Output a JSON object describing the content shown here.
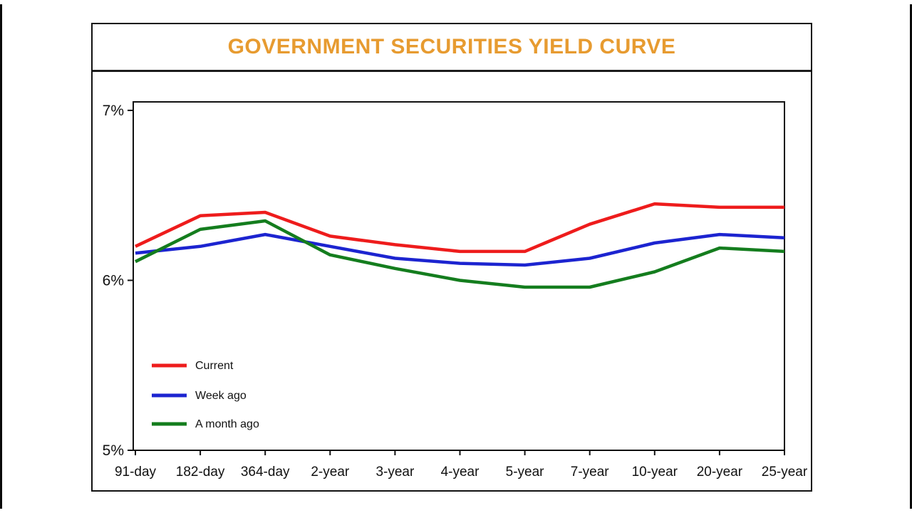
{
  "card": {
    "title": "GOVERNMENT SECURITIES YIELD CURVE",
    "title_color": "#E79B30",
    "border_color": "#111111"
  },
  "chart_data": {
    "type": "line",
    "title": "GOVERNMENT SECURITIES YIELD CURVE",
    "categories": [
      "91-day",
      "182-day",
      "364-day",
      "2-year",
      "3-year",
      "4-year",
      "5-year",
      "7-year",
      "10-year",
      "20-year",
      "25-year"
    ],
    "series": [
      {
        "name": "Current",
        "color": "#EE1C1C",
        "values": [
          6.2,
          6.38,
          6.4,
          6.26,
          6.21,
          6.17,
          6.17,
          6.33,
          6.45,
          6.43,
          6.43
        ]
      },
      {
        "name": "Week ago",
        "color": "#1C24D0",
        "values": [
          6.16,
          6.2,
          6.27,
          6.2,
          6.13,
          6.1,
          6.09,
          6.13,
          6.22,
          6.27,
          6.25
        ]
      },
      {
        "name": "A month ago",
        "color": "#147D1E",
        "values": [
          6.11,
          6.3,
          6.35,
          6.15,
          6.07,
          6.0,
          5.96,
          5.96,
          6.05,
          6.19,
          6.17
        ]
      }
    ],
    "y_ticks": [
      {
        "label": "7%",
        "value": 7
      },
      {
        "label": "6%",
        "value": 6
      },
      {
        "label": "5%",
        "value": 5
      }
    ],
    "ylim": [
      5,
      7.05
    ],
    "grid": false,
    "legend_position": "inside-bottom-left",
    "axis_color": "#111111"
  }
}
